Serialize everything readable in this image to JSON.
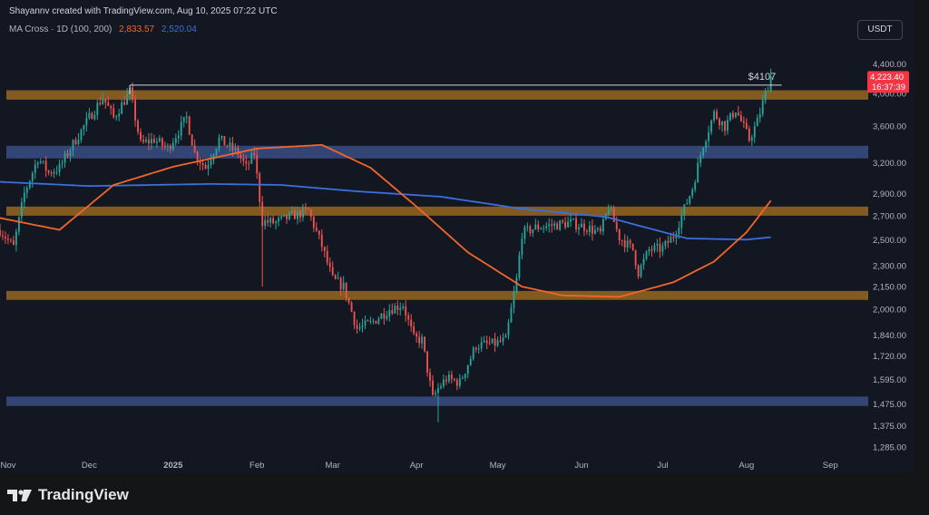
{
  "header": {
    "credit": "Shayannv created with TradingView.com, Aug 10, 2025 07:22 UTC",
    "indicator": "MA Cross · 1D (100, 200)",
    "ma100_value": "2,833.57",
    "ma200_value": "2,520.04",
    "currency": "USDT"
  },
  "footer": {
    "logo_text": "TradingView"
  },
  "colors": {
    "background": "#131722",
    "candle_up": "#26a69a",
    "candle_down": "#ef5350",
    "ma100": "#f2662a",
    "ma200": "#3a6fdc",
    "supply_zone": "#9a6a22",
    "demand_zone": "#3a4f86"
  },
  "chart_data": {
    "type": "candlestick",
    "symbol_interval": "1D",
    "y_scale": "log",
    "ylim": [
      1240,
      4600
    ],
    "y_ticks": [
      "4,400.00",
      "4,000.00",
      "3,600.00",
      "3,200.00",
      "2,900.00",
      "2,700.00",
      "2,500.00",
      "2,300.00",
      "2,150.00",
      "2,000.00",
      "1,840.00",
      "1,720.00",
      "1,595.00",
      "1,475.00",
      "1,375.00",
      "1,285.00"
    ],
    "x_ticks": [
      {
        "label": "Nov",
        "date": "2024-11-01"
      },
      {
        "label": "Dec",
        "date": "2024-12-01"
      },
      {
        "label": "2025",
        "date": "2025-01-01"
      },
      {
        "label": "Feb",
        "date": "2025-02-01"
      },
      {
        "label": "Mar",
        "date": "2025-03-01"
      },
      {
        "label": "Apr",
        "date": "2025-04-01"
      },
      {
        "label": "May",
        "date": "2025-05-01"
      },
      {
        "label": "Jun",
        "date": "2025-06-01"
      },
      {
        "label": "Jul",
        "date": "2025-07-01"
      },
      {
        "label": "Aug",
        "date": "2025-08-01"
      },
      {
        "label": "Sep",
        "date": "2025-09-01"
      }
    ],
    "x_range": [
      "2024-10-29",
      "2025-09-15"
    ],
    "price_path": [
      [
        "2024-10-29",
        2580
      ],
      [
        "2024-11-03",
        2440
      ],
      [
        "2024-11-07",
        2900
      ],
      [
        "2024-11-12",
        3250
      ],
      [
        "2024-11-16",
        3100
      ],
      [
        "2024-11-20",
        3150
      ],
      [
        "2024-11-25",
        3400
      ],
      [
        "2024-12-01",
        3700
      ],
      [
        "2024-12-06",
        3950
      ],
      [
        "2024-12-10",
        3700
      ],
      [
        "2024-12-16",
        4020
      ],
      [
        "2024-12-20",
        3400
      ],
      [
        "2024-12-25",
        3450
      ],
      [
        "2024-12-30",
        3350
      ],
      [
        "2025-01-06",
        3700
      ],
      [
        "2025-01-09",
        3300
      ],
      [
        "2025-01-13",
        3150
      ],
      [
        "2025-01-18",
        3450
      ],
      [
        "2025-01-25",
        3300
      ],
      [
        "2025-01-28",
        3150
      ],
      [
        "2025-01-31",
        3300
      ],
      [
        "2025-02-03",
        2650
      ],
      [
        "2025-02-08",
        2640
      ],
      [
        "2025-02-14",
        2700
      ],
      [
        "2025-02-20",
        2740
      ],
      [
        "2025-02-25",
        2450
      ],
      [
        "2025-03-01",
        2200
      ],
      [
        "2025-03-05",
        2150
      ],
      [
        "2025-03-10",
        1880
      ],
      [
        "2025-03-15",
        1910
      ],
      [
        "2025-03-22",
        2000
      ],
      [
        "2025-03-27",
        2030
      ],
      [
        "2025-03-31",
        1820
      ],
      [
        "2025-04-03",
        1810
      ],
      [
        "2025-04-07",
        1500
      ],
      [
        "2025-04-09",
        1550
      ],
      [
        "2025-04-12",
        1600
      ],
      [
        "2025-04-17",
        1580
      ],
      [
        "2025-04-23",
        1780
      ],
      [
        "2025-04-30",
        1790
      ],
      [
        "2025-05-04",
        1810
      ],
      [
        "2025-05-08",
        2200
      ],
      [
        "2025-05-10",
        2550
      ],
      [
        "2025-05-15",
        2600
      ],
      [
        "2025-05-22",
        2620
      ],
      [
        "2025-05-28",
        2640
      ],
      [
        "2025-06-03",
        2600
      ],
      [
        "2025-06-08",
        2550
      ],
      [
        "2025-06-11",
        2780
      ],
      [
        "2025-06-15",
        2520
      ],
      [
        "2025-06-20",
        2420
      ],
      [
        "2025-06-22",
        2250
      ],
      [
        "2025-06-26",
        2420
      ],
      [
        "2025-07-01",
        2430
      ],
      [
        "2025-07-05",
        2530
      ],
      [
        "2025-07-09",
        2760
      ],
      [
        "2025-07-12",
        2950
      ],
      [
        "2025-07-16",
        3400
      ],
      [
        "2025-07-20",
        3750
      ],
      [
        "2025-07-24",
        3600
      ],
      [
        "2025-07-28",
        3800
      ],
      [
        "2025-08-02",
        3450
      ],
      [
        "2025-08-05",
        3650
      ],
      [
        "2025-08-08",
        4000
      ],
      [
        "2025-08-10",
        4223.4
      ]
    ],
    "wick_extremes": [
      {
        "date": "2024-12-16",
        "high": 4107
      },
      {
        "date": "2025-02-03",
        "low": 2150
      },
      {
        "date": "2025-04-09",
        "low": 1390
      },
      {
        "date": "2025-08-10",
        "high": 4330
      }
    ],
    "ma100_path": [
      [
        "2024-10-29",
        2680
      ],
      [
        "2024-11-20",
        2580
      ],
      [
        "2024-12-10",
        2980
      ],
      [
        "2025-01-01",
        3160
      ],
      [
        "2025-02-01",
        3350
      ],
      [
        "2025-02-25",
        3390
      ],
      [
        "2025-03-15",
        3150
      ],
      [
        "2025-04-01",
        2780
      ],
      [
        "2025-04-20",
        2400
      ],
      [
        "2025-05-10",
        2150
      ],
      [
        "2025-05-25",
        2090
      ],
      [
        "2025-06-15",
        2080
      ],
      [
        "2025-07-05",
        2180
      ],
      [
        "2025-07-20",
        2330
      ],
      [
        "2025-08-01",
        2560
      ],
      [
        "2025-08-10",
        2833.57
      ]
    ],
    "ma200_path": [
      [
        "2024-10-29",
        3010
      ],
      [
        "2024-12-01",
        2970
      ],
      [
        "2025-01-15",
        2990
      ],
      [
        "2025-02-10",
        2980
      ],
      [
        "2025-03-10",
        2920
      ],
      [
        "2025-04-10",
        2870
      ],
      [
        "2025-05-10",
        2760
      ],
      [
        "2025-06-10",
        2690
      ],
      [
        "2025-07-10",
        2510
      ],
      [
        "2025-08-01",
        2500
      ],
      [
        "2025-08-10",
        2520.04
      ]
    ],
    "zones": [
      {
        "kind": "supply",
        "from": 4040,
        "to": 3920
      },
      {
        "kind": "demand",
        "from": 3380,
        "to": 3245
      },
      {
        "kind": "supply",
        "from": 2780,
        "to": 2700
      },
      {
        "kind": "supply",
        "from": 2120,
        "to": 2060
      },
      {
        "kind": "demand",
        "from": 1510,
        "to": 1465
      }
    ],
    "resistance_line": {
      "start_date": "2024-12-16",
      "end_date": "2025-08-14",
      "price": 4107,
      "label": "$4107"
    },
    "last_price": {
      "value": 4223.4,
      "label": "4,223.40",
      "countdown": "16:37:39"
    }
  }
}
